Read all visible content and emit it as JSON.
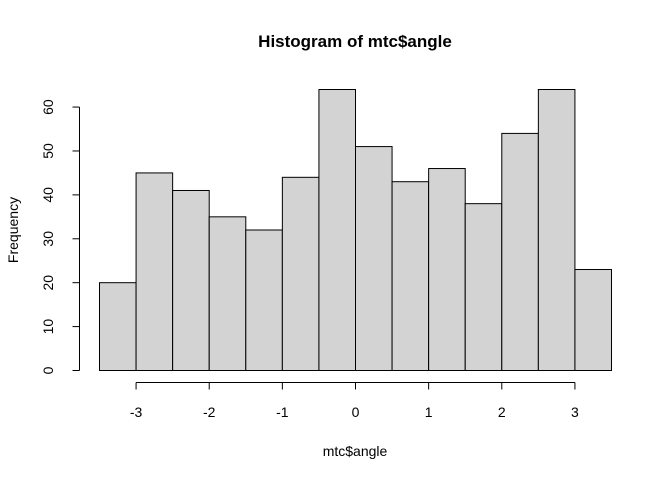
{
  "chart_data": {
    "type": "bar",
    "title": "Histogram of mtc$angle",
    "xlabel": "mtc$angle",
    "ylabel": "Frequency",
    "bins": [
      {
        "start": -3.5,
        "end": -3.0,
        "count": 20
      },
      {
        "start": -3.0,
        "end": -2.5,
        "count": 45
      },
      {
        "start": -2.5,
        "end": -2.0,
        "count": 41
      },
      {
        "start": -2.0,
        "end": -1.5,
        "count": 35
      },
      {
        "start": -1.5,
        "end": -1.0,
        "count": 32
      },
      {
        "start": -1.0,
        "end": -0.5,
        "count": 44
      },
      {
        "start": -0.5,
        "end": 0.0,
        "count": 64
      },
      {
        "start": 0.0,
        "end": 0.5,
        "count": 51
      },
      {
        "start": 0.5,
        "end": 1.0,
        "count": 43
      },
      {
        "start": 1.0,
        "end": 1.5,
        "count": 46
      },
      {
        "start": 1.5,
        "end": 2.0,
        "count": 38
      },
      {
        "start": 2.0,
        "end": 2.5,
        "count": 54
      },
      {
        "start": 2.5,
        "end": 3.0,
        "count": 64
      },
      {
        "start": 3.0,
        "end": 3.5,
        "count": 23
      }
    ],
    "xticks": [
      -3,
      -2,
      -1,
      0,
      1,
      2,
      3
    ],
    "yticks": [
      0,
      10,
      20,
      30,
      40,
      50,
      60
    ],
    "xlim": [
      -3.5,
      3.5
    ],
    "ylim": [
      0,
      64
    ],
    "bar_color": "#d3d3d3",
    "grid": false
  }
}
